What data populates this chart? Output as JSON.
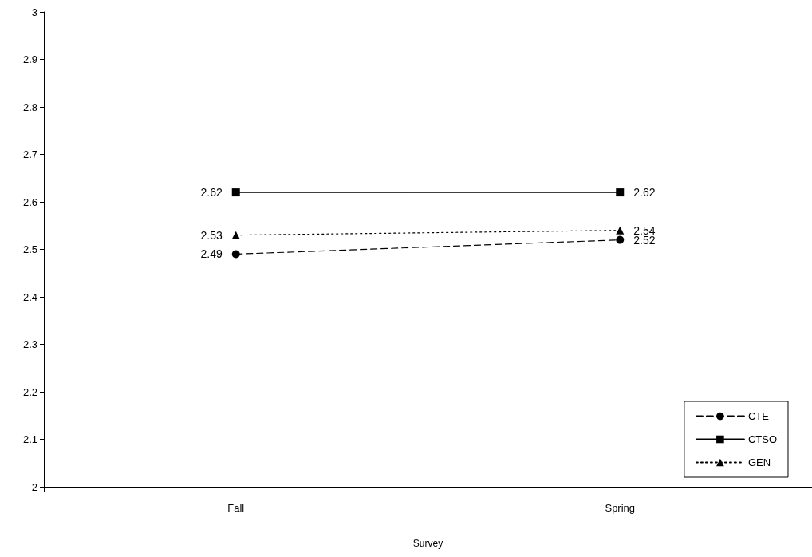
{
  "chart_data": {
    "type": "line",
    "xlabel": "Survey",
    "categories": [
      "Fall",
      "Spring"
    ],
    "series": [
      {
        "name": "CTE",
        "color": "#000000",
        "values": [
          2.49,
          2.52
        ],
        "marker": "circle",
        "line_style": "dashed"
      },
      {
        "name": "CTSO",
        "color": "#000000",
        "values": [
          2.62,
          2.62
        ],
        "marker": "square",
        "line_style": "solid"
      },
      {
        "name": "GEN",
        "color": "#000000",
        "values": [
          2.53,
          2.54
        ],
        "marker": "triangle",
        "line_style": "dotted"
      }
    ],
    "ylim": [
      2,
      3
    ],
    "yticks": [
      2,
      2.1,
      2.2,
      2.3,
      2.4,
      2.5,
      2.6,
      2.7,
      2.8,
      2.9,
      3
    ],
    "grid": false,
    "legend": "bottom right",
    "data_labels": true
  }
}
